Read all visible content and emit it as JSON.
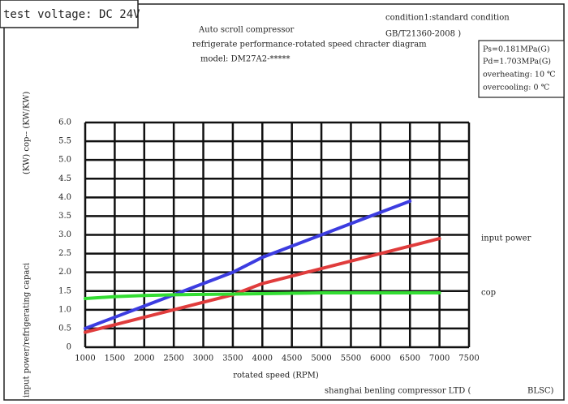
{
  "chart_data": {
    "type": "line",
    "test_voltage": "test voltage: DC 24V",
    "title_lines": [
      "Auto scroll compressor",
      "refrigerate performance-rotated   speed chracter diagram",
      "model: DM27A2-*****"
    ],
    "condition_lines": [
      "condition1:standard condition",
      "GB/T21360-2008 )"
    ],
    "parameters": [
      "Ps=0.181MPa(G)",
      "Pd=1.703MPa(G)",
      "overheating: 10 ℃",
      "overcooling: 0 ℃"
    ],
    "ylabel_lines": [
      "(KW)    cop-- (KW/KW)",
      "input power/refrigerating capaci"
    ],
    "xlabel": "rotated speed (RPM)",
    "footer": [
      "shanghai benling compressor LTD (",
      "BLSC)"
    ],
    "x": [
      1000,
      1500,
      2000,
      2500,
      3000,
      3500,
      4000,
      4500,
      5000,
      5500,
      6000,
      6500,
      7000
    ],
    "series": [
      {
        "color": "#3c3ce0",
        "values": [
          0.5,
          0.8,
          1.1,
          1.4,
          1.7,
          2.0,
          2.4,
          2.7,
          3.0,
          3.3,
          3.6,
          3.9,
          null
        ]
      },
      {
        "name": "input power",
        "color": "#e03c3c",
        "values": [
          0.4,
          0.6,
          0.8,
          1.0,
          1.2,
          1.4,
          1.7,
          1.9,
          2.1,
          2.3,
          2.5,
          2.7,
          2.9
        ]
      },
      {
        "name": "cop",
        "color": "#33dd33",
        "values": [
          1.3,
          1.35,
          1.38,
          1.4,
          1.41,
          1.42,
          1.43,
          1.44,
          1.45,
          1.45,
          1.45,
          1.45,
          1.45
        ]
      }
    ],
    "xlim": [
      1000,
      7500
    ],
    "xticks": [
      1000,
      1500,
      2000,
      2500,
      3000,
      3500,
      4000,
      4500,
      5000,
      5500,
      6000,
      6500,
      7000,
      7500
    ],
    "ylim": [
      0,
      6
    ],
    "yticks": [
      0,
      0.5,
      {
        "value": 1,
        "label": "1.0"
      },
      1.5,
      {
        "value": 2,
        "label": "2.0"
      },
      2.5,
      {
        "value": 3,
        "label": "3.0"
      },
      3.5,
      {
        "value": 4,
        "label": "4.0"
      },
      4.5,
      {
        "value": 5,
        "label": "5.0"
      },
      5.5,
      {
        "value": 6,
        "label": "6.0"
      }
    ],
    "grid": true
  }
}
